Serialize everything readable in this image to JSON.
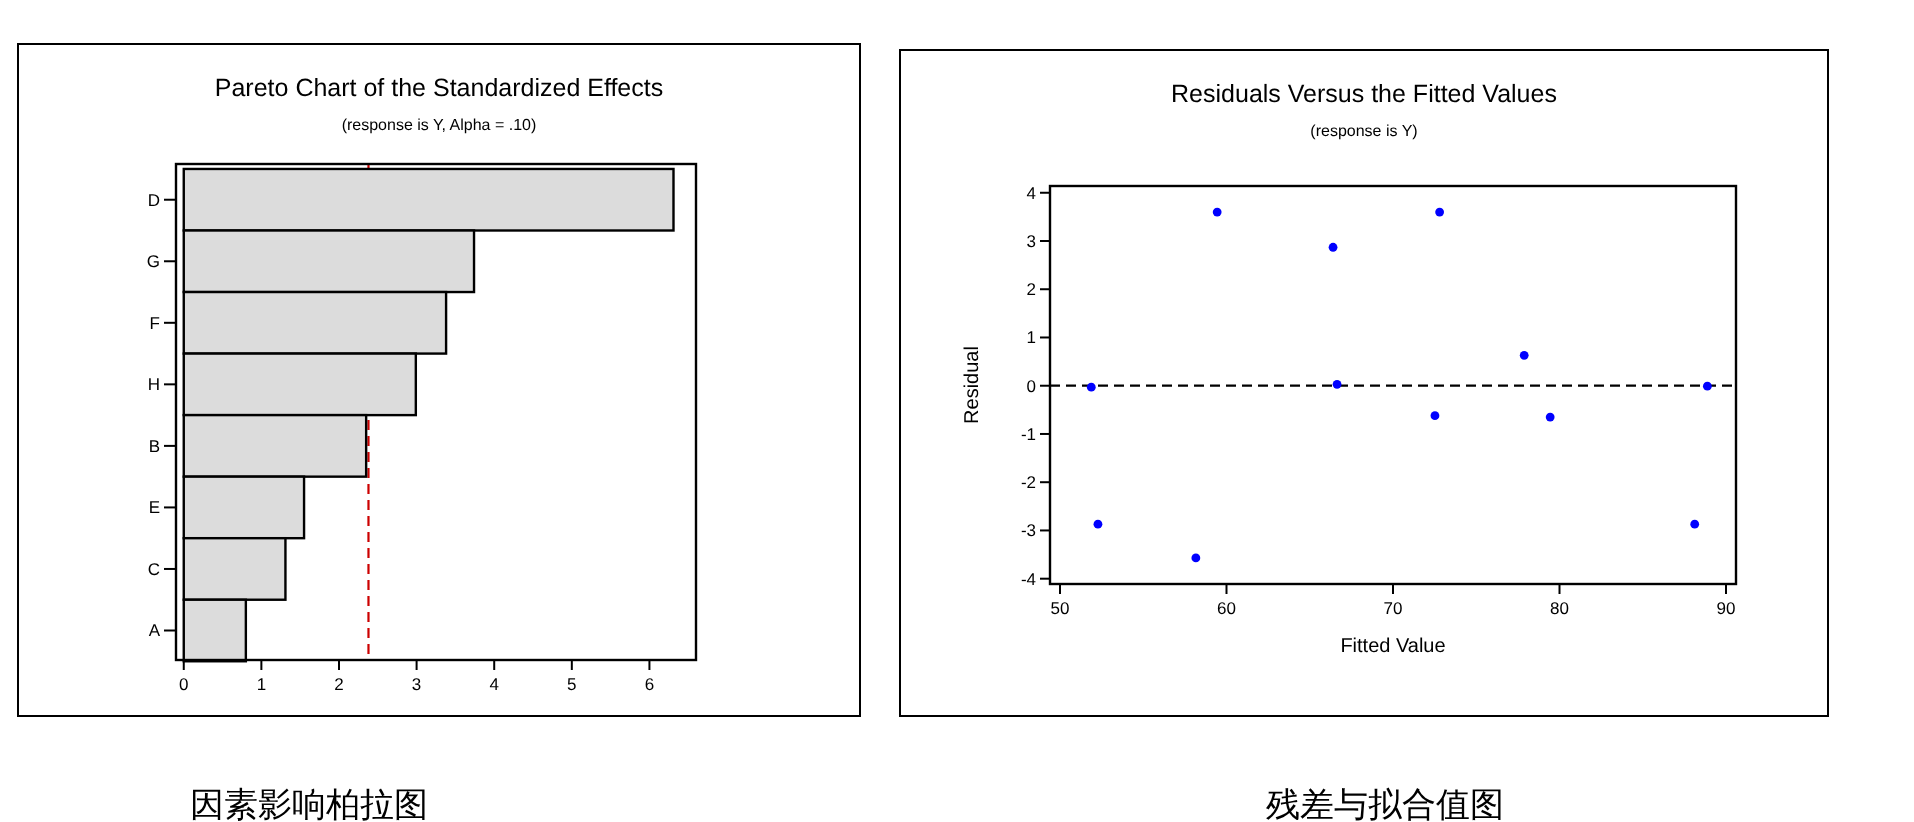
{
  "chart_data": [
    {
      "type": "bar",
      "orientation": "horizontal",
      "title": "Pareto Chart of the Standardized Effects",
      "subtitle": "(response is Y, Alpha = .10)",
      "categories": [
        "D",
        "G",
        "F",
        "H",
        "B",
        "E",
        "C",
        "A"
      ],
      "values": [
        6.31,
        3.74,
        3.38,
        2.99,
        2.35,
        1.55,
        1.31,
        0.8
      ],
      "color": "#dcdcdc",
      "xlim": [
        -0.1,
        6.6
      ],
      "xticks": [
        0,
        1,
        2,
        3,
        4,
        5,
        6
      ],
      "grid": false,
      "ref_lines": [
        {
          "axis": "x",
          "value": 2.38,
          "color": "#cc0000",
          "line_style": "dashed"
        }
      ],
      "annotations": [
        "因素影响柏拉图"
      ]
    },
    {
      "type": "scatter",
      "title": "Residuals Versus the Fitted Values",
      "subtitle": "(response is Y)",
      "xlabel": "Fitted Value",
      "ylabel": "Residual",
      "x": [
        51.88,
        52.28,
        58.16,
        59.44,
        66.4,
        66.64,
        72.52,
        72.8,
        77.88,
        79.44,
        88.12,
        88.88
      ],
      "values": [
        -0.03,
        -2.87,
        -3.57,
        3.6,
        2.87,
        0.03,
        -0.62,
        3.6,
        0.63,
        -0.65,
        -2.87,
        -0.01
      ],
      "color": "#0000ff",
      "marker": "circle",
      "xlim": [
        49.4,
        90.6
      ],
      "xticks": [
        50,
        60,
        70,
        80,
        90
      ],
      "ylim": [
        -4.11,
        4.14
      ],
      "yticks": [
        -4,
        -3,
        -2,
        -1,
        0,
        1,
        2,
        3,
        4
      ],
      "grid": false,
      "ref_lines": [
        {
          "axis": "y",
          "value": 0,
          "color": "#000000",
          "line_style": "dashed"
        }
      ],
      "annotations": [
        "残差与拟合值图"
      ]
    }
  ]
}
